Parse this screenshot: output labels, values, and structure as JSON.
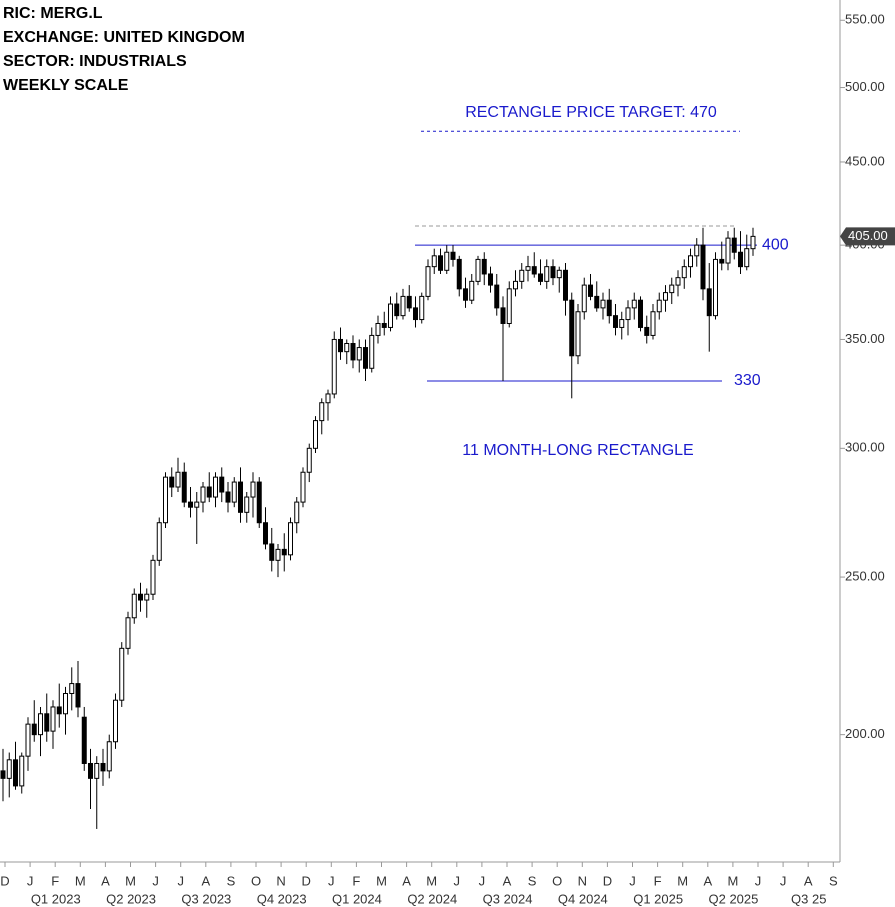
{
  "chart_data": {
    "type": "candlestick",
    "info": [
      "RIC:  MERG.L",
      "EXCHANGE:  UNITED KINGDOM",
      "SECTOR:  INDUSTRIALS",
      "WEEKLY SCALE"
    ],
    "log_scale": true,
    "ylim": [
      167,
      566
    ],
    "yticks": [
      {
        "value": 550,
        "label": "550.00"
      },
      {
        "value": 500,
        "label": "500.00"
      },
      {
        "value": 450,
        "label": "450.00"
      },
      {
        "value": 400,
        "label": "400.00"
      },
      {
        "value": 350,
        "label": "350.00"
      },
      {
        "value": 300,
        "label": "300.00"
      },
      {
        "value": 250,
        "label": "250.00"
      },
      {
        "value": 200,
        "label": "200.00"
      }
    ],
    "last_price": {
      "value": 405,
      "label": "405.00"
    },
    "months": [
      "D",
      "J",
      "F",
      "M",
      "A",
      "M",
      "J",
      "J",
      "A",
      "S",
      "O",
      "N",
      "D",
      "J",
      "F",
      "M",
      "A",
      "M",
      "J",
      "J",
      "A",
      "S",
      "O",
      "N",
      "D",
      "J",
      "F",
      "M",
      "A",
      "M",
      "J",
      "J",
      "A",
      "S"
    ],
    "quarters": [
      "Q1 2023",
      "Q2 2023",
      "Q3 2023",
      "Q4 2023",
      "Q1 2024",
      "Q2 2024",
      "Q3 2024",
      "Q4 2024",
      "Q1 2025",
      "Q2 2025",
      "Q3 25"
    ],
    "target": {
      "value": 470,
      "label": "RECTANGLE PRICE TARGET: 470"
    },
    "resistance": {
      "value": 400,
      "label": "400"
    },
    "support": {
      "value": 330,
      "label": "330"
    },
    "high_line": 411,
    "pattern_label": "11 MONTH-LONG RECTANGLE",
    "candles": [
      [
        190,
        196,
        182,
        188
      ],
      [
        188,
        195,
        183,
        193
      ],
      [
        193,
        198,
        185,
        186
      ],
      [
        186,
        195,
        184,
        194
      ],
      [
        194,
        205,
        190,
        203
      ],
      [
        203,
        210,
        198,
        200
      ],
      [
        200,
        208,
        194,
        206
      ],
      [
        206,
        212,
        198,
        201
      ],
      [
        201,
        210,
        196,
        208
      ],
      [
        208,
        215,
        202,
        206
      ],
      [
        206,
        214,
        200,
        212
      ],
      [
        212,
        220,
        207,
        215
      ],
      [
        215,
        222,
        205,
        208
      ],
      [
        205,
        208,
        190,
        192
      ],
      [
        192,
        196,
        180,
        188
      ],
      [
        188,
        194,
        175,
        192
      ],
      [
        192,
        196,
        186,
        190
      ],
      [
        190,
        200,
        188,
        198
      ],
      [
        198,
        212,
        196,
        210
      ],
      [
        210,
        228,
        208,
        226
      ],
      [
        226,
        238,
        224,
        236
      ],
      [
        236,
        246,
        234,
        244
      ],
      [
        244,
        248,
        238,
        242
      ],
      [
        242,
        246,
        236,
        244
      ],
      [
        244,
        258,
        242,
        256
      ],
      [
        256,
        272,
        254,
        270
      ],
      [
        270,
        290,
        268,
        288
      ],
      [
        288,
        292,
        280,
        284
      ],
      [
        284,
        296,
        282,
        290
      ],
      [
        290,
        294,
        276,
        278
      ],
      [
        278,
        284,
        272,
        276
      ],
      [
        276,
        282,
        262,
        278
      ],
      [
        278,
        286,
        274,
        284
      ],
      [
        284,
        290,
        278,
        280
      ],
      [
        280,
        290,
        276,
        288
      ],
      [
        288,
        292,
        278,
        282
      ],
      [
        282,
        286,
        274,
        278
      ],
      [
        278,
        288,
        276,
        286
      ],
      [
        286,
        292,
        270,
        274
      ],
      [
        274,
        282,
        270,
        280
      ],
      [
        280,
        290,
        272,
        286
      ],
      [
        286,
        288,
        268,
        270
      ],
      [
        270,
        276,
        260,
        262
      ],
      [
        262,
        268,
        252,
        256
      ],
      [
        256,
        262,
        250,
        260
      ],
      [
        260,
        266,
        252,
        258
      ],
      [
        258,
        272,
        256,
        270
      ],
      [
        270,
        280,
        266,
        278
      ],
      [
        278,
        292,
        276,
        290
      ],
      [
        290,
        302,
        286,
        300
      ],
      [
        300,
        314,
        298,
        312
      ],
      [
        312,
        322,
        306,
        320
      ],
      [
        320,
        326,
        312,
        324
      ],
      [
        324,
        354,
        322,
        350
      ],
      [
        350,
        356,
        340,
        344
      ],
      [
        344,
        350,
        338,
        348
      ],
      [
        348,
        352,
        336,
        340
      ],
      [
        340,
        350,
        334,
        346
      ],
      [
        346,
        350,
        330,
        336
      ],
      [
        336,
        356,
        334,
        352
      ],
      [
        352,
        362,
        348,
        358
      ],
      [
        358,
        364,
        352,
        356
      ],
      [
        356,
        372,
        354,
        368
      ],
      [
        368,
        374,
        360,
        362
      ],
      [
        362,
        376,
        360,
        372
      ],
      [
        372,
        378,
        364,
        366
      ],
      [
        366,
        372,
        356,
        360
      ],
      [
        360,
        374,
        358,
        372
      ],
      [
        372,
        392,
        370,
        388
      ],
      [
        388,
        398,
        384,
        394
      ],
      [
        394,
        398,
        384,
        386
      ],
      [
        386,
        400,
        384,
        396
      ],
      [
        396,
        400,
        388,
        392
      ],
      [
        392,
        394,
        372,
        376
      ],
      [
        376,
        382,
        366,
        370
      ],
      [
        370,
        384,
        368,
        380
      ],
      [
        380,
        394,
        378,
        392
      ],
      [
        392,
        396,
        378,
        384
      ],
      [
        384,
        388,
        374,
        378
      ],
      [
        378,
        384,
        362,
        366
      ],
      [
        366,
        372,
        330,
        358
      ],
      [
        358,
        380,
        356,
        376
      ],
      [
        376,
        386,
        372,
        380
      ],
      [
        380,
        390,
        376,
        386
      ],
      [
        386,
        394,
        380,
        388
      ],
      [
        388,
        396,
        382,
        384
      ],
      [
        384,
        392,
        378,
        380
      ],
      [
        380,
        392,
        376,
        388
      ],
      [
        388,
        392,
        378,
        382
      ],
      [
        382,
        388,
        374,
        386
      ],
      [
        386,
        390,
        362,
        370
      ],
      [
        370,
        374,
        322,
        342
      ],
      [
        342,
        368,
        338,
        364
      ],
      [
        364,
        382,
        360,
        378
      ],
      [
        378,
        384,
        370,
        372
      ],
      [
        372,
        380,
        364,
        366
      ],
      [
        366,
        374,
        360,
        370
      ],
      [
        370,
        376,
        358,
        362
      ],
      [
        362,
        368,
        352,
        356
      ],
      [
        356,
        364,
        350,
        360
      ],
      [
        360,
        370,
        352,
        366
      ],
      [
        366,
        374,
        360,
        370
      ],
      [
        370,
        372,
        354,
        356
      ],
      [
        356,
        362,
        348,
        352
      ],
      [
        352,
        368,
        350,
        364
      ],
      [
        364,
        374,
        360,
        370
      ],
      [
        370,
        378,
        364,
        374
      ],
      [
        374,
        382,
        368,
        378
      ],
      [
        378,
        386,
        372,
        382
      ],
      [
        382,
        392,
        376,
        388
      ],
      [
        388,
        398,
        382,
        394
      ],
      [
        394,
        404,
        388,
        400
      ],
      [
        400,
        410,
        370,
        376
      ],
      [
        376,
        390,
        344,
        362
      ],
      [
        362,
        396,
        360,
        392
      ],
      [
        392,
        402,
        386,
        390
      ],
      [
        390,
        408,
        386,
        404
      ],
      [
        404,
        410,
        392,
        396
      ],
      [
        396,
        408,
        384,
        388
      ],
      [
        388,
        406,
        386,
        398
      ],
      [
        398,
        410,
        394,
        405
      ]
    ]
  }
}
